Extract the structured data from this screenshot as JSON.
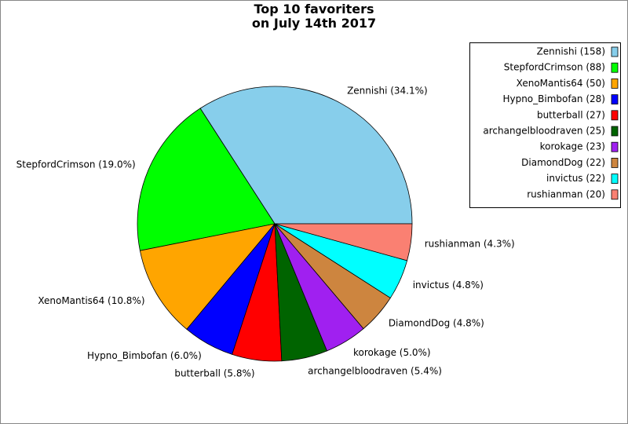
{
  "chart_data": {
    "type": "pie",
    "title": "Top 10 favoriters\non July 14th 2017",
    "labels": [
      "Zennishi (34.1%)",
      "StepfordCrimson (19.0%)",
      "XenoMantis64 (10.8%)",
      "Hypno_Bimbofan (6.0%)",
      "butterball (5.8%)",
      "archangelbloodraven (5.4%)",
      "korokage (5.0%)",
      "DiamondDog (4.8%)",
      "invictus (4.8%)",
      "rushianman (4.3%)"
    ],
    "values": [
      158,
      88,
      50,
      28,
      27,
      25,
      23,
      22,
      22,
      20
    ],
    "value_labels": [
      "Zennishi (158)",
      "StepfordCrimson (88)",
      "XenoMantis64 (50)",
      "Hypno_Bimbofan (28)",
      "butterball (27)",
      "archangelbloodraven (25)",
      "korokage (23)",
      "DiamondDog (22)",
      "invictus (22)",
      "rushianman (20)"
    ],
    "colors": [
      "#87ceeb",
      "#00ff00",
      "#ffa500",
      "#0000ff",
      "#ff0000",
      "#006400",
      "#a020f0",
      "#cd853f",
      "#00ffff",
      "#fa8072"
    ],
    "legend": "upper right"
  }
}
